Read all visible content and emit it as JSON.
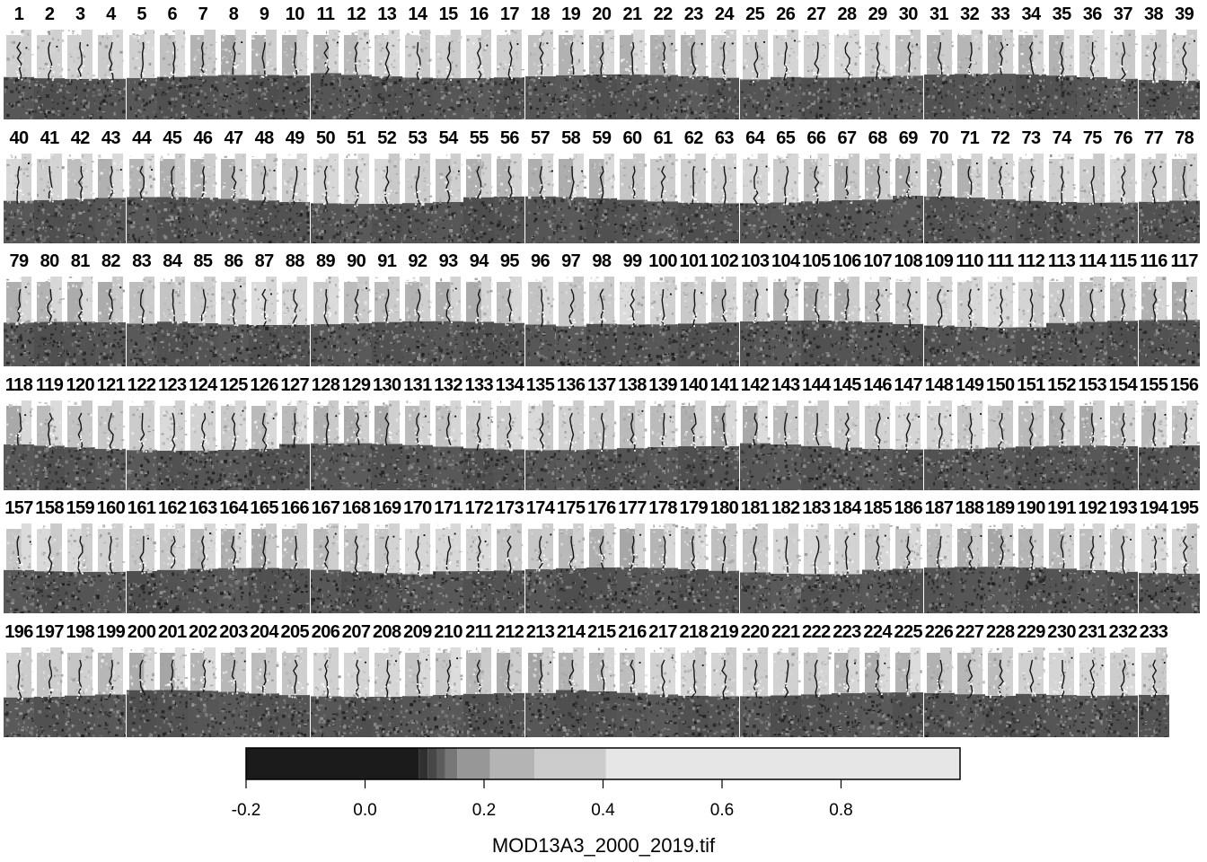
{
  "chart_data": {
    "type": "heatmap",
    "layer_count": 233,
    "panel_titles": [
      "1",
      "2",
      "3",
      "4",
      "5",
      "6",
      "7",
      "8",
      "9",
      "10",
      "11",
      "12",
      "13",
      "14",
      "15",
      "16",
      "17",
      "18",
      "19",
      "20",
      "21",
      "22",
      "23",
      "24",
      "25",
      "26",
      "27",
      "28",
      "29",
      "30",
      "31",
      "32",
      "33",
      "34",
      "35",
      "36",
      "37",
      "38",
      "39",
      "40",
      "41",
      "42",
      "43",
      "44",
      "45",
      "46",
      "47",
      "48",
      "49",
      "50",
      "51",
      "52",
      "53",
      "54",
      "55",
      "56",
      "57",
      "58",
      "59",
      "60",
      "61",
      "62",
      "63",
      "64",
      "65",
      "66",
      "67",
      "68",
      "69",
      "70",
      "71",
      "72",
      "73",
      "74",
      "75",
      "76",
      "77",
      "78",
      "79",
      "80",
      "81",
      "82",
      "83",
      "84",
      "85",
      "86",
      "87",
      "88",
      "89",
      "90",
      "91",
      "92",
      "93",
      "94",
      "95",
      "96",
      "97",
      "98",
      "99",
      "100",
      "101",
      "102",
      "103",
      "104",
      "105",
      "106",
      "107",
      "108",
      "109",
      "110",
      "111",
      "112",
      "113",
      "114",
      "115",
      "116",
      "117",
      "118",
      "119",
      "120",
      "121",
      "122",
      "123",
      "124",
      "125",
      "126",
      "127",
      "128",
      "129",
      "130",
      "131",
      "132",
      "133",
      "134",
      "135",
      "136",
      "137",
      "138",
      "139",
      "140",
      "141",
      "142",
      "143",
      "144",
      "145",
      "146",
      "147",
      "148",
      "149",
      "150",
      "151",
      "152",
      "153",
      "154",
      "155",
      "156",
      "157",
      "158",
      "159",
      "160",
      "161",
      "162",
      "163",
      "164",
      "165",
      "166",
      "167",
      "168",
      "169",
      "170",
      "171",
      "172",
      "173",
      "174",
      "175",
      "176",
      "177",
      "178",
      "179",
      "180",
      "181",
      "182",
      "183",
      "184",
      "185",
      "186",
      "187",
      "188",
      "189",
      "190",
      "191",
      "192",
      "193",
      "194",
      "195",
      "196",
      "197",
      "198",
      "199",
      "200",
      "201",
      "202",
      "203",
      "204",
      "205",
      "206",
      "207",
      "208",
      "209",
      "210",
      "211",
      "212",
      "213",
      "214",
      "215",
      "216",
      "217",
      "218",
      "219",
      "220",
      "221",
      "222",
      "223",
      "224",
      "225",
      "226",
      "227",
      "228",
      "229",
      "230",
      "231",
      "232",
      "233"
    ],
    "legend": {
      "title": "MOD13A3_2000_2019.tif",
      "range": [
        -0.2,
        1.0
      ],
      "ticks": [
        -0.2,
        0.0,
        0.2,
        0.4,
        0.6,
        0.8
      ],
      "tick_labels": [
        "-0.2",
        "0.0",
        "0.2",
        "0.4",
        "0.6",
        "0.8"
      ],
      "breaks": [
        {
          "from": -0.2,
          "to": 0.09,
          "color": "#1b1b1b"
        },
        {
          "from": 0.09,
          "to": 0.105,
          "color": "#303030"
        },
        {
          "from": 0.105,
          "to": 0.12,
          "color": "#474747"
        },
        {
          "from": 0.12,
          "to": 0.135,
          "color": "#5c5c5c"
        },
        {
          "from": 0.135,
          "to": 0.155,
          "color": "#777777"
        },
        {
          "from": 0.155,
          "to": 0.21,
          "color": "#979797"
        },
        {
          "from": 0.21,
          "to": 0.285,
          "color": "#b4b4b4"
        },
        {
          "from": 0.285,
          "to": 0.405,
          "color": "#cccccc"
        },
        {
          "from": 0.405,
          "to": 1.0,
          "color": "#e6e6e6"
        }
      ],
      "placement": "bottom"
    }
  }
}
